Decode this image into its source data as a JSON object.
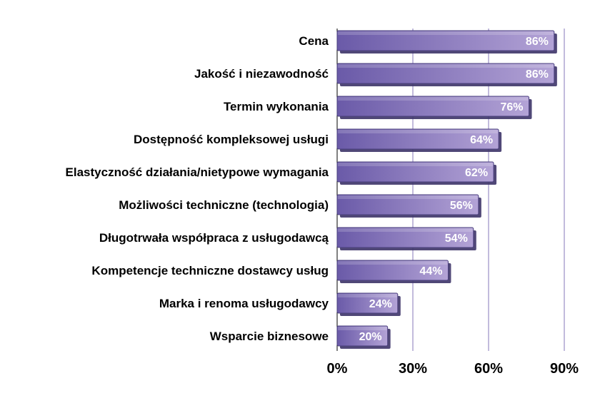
{
  "chart_data": {
    "type": "bar",
    "orientation": "horizontal",
    "categories": [
      "Cena",
      "Jakość i niezawodność",
      "Termin wykonania",
      "Dostępność kompleksowej usługi",
      "Elastyczność działania/nietypowe wymagania",
      "Możliwości techniczne (technologia)",
      "Długotrwała współpraca z usługodawcą",
      "Kompetencje techniczne dostawcy usług",
      "Marka i renoma usługodawcy",
      "Wsparcie biznesowe"
    ],
    "values": [
      86,
      86,
      76,
      64,
      62,
      56,
      54,
      44,
      24,
      20
    ],
    "data_labels": [
      "86%",
      "86%",
      "76%",
      "64%",
      "62%",
      "56%",
      "54%",
      "44%",
      "24%",
      "20%"
    ],
    "xlim": [
      0,
      90
    ],
    "x_ticks": [
      0,
      30,
      60,
      90
    ],
    "x_tick_labels": [
      "0%",
      "30%",
      "60%",
      "90%"
    ],
    "title": "",
    "xlabel": "",
    "ylabel": "",
    "grid": "vertical",
    "legend": "none",
    "colors": {
      "bar_light": "#b3a3d6",
      "bar_dark": "#6a5aa8",
      "bar_stroke": "#4a3f7e",
      "gridline": "#8577b8",
      "label_text": "#000000",
      "value_text": "#ffffff"
    }
  }
}
